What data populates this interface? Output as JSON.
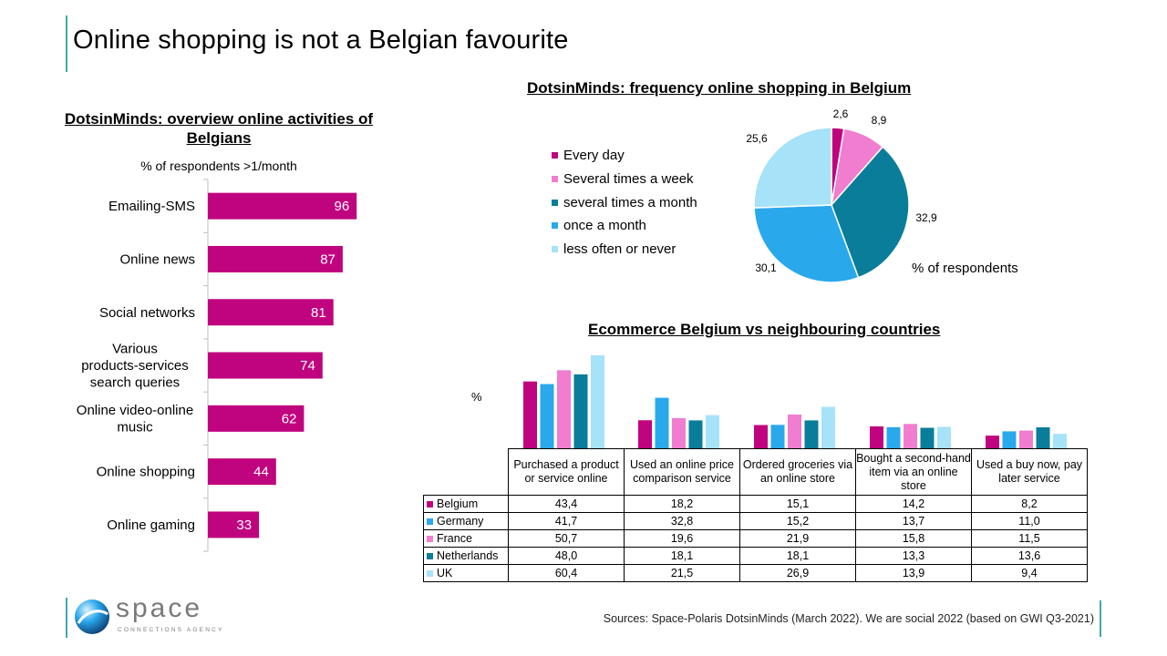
{
  "title": "Online shopping is not a Belgian favourite",
  "colors": {
    "accent": "#3fa7b5",
    "magenta": "#c0037e",
    "blue": "#2aa8ec",
    "pink": "#f07dd0",
    "teal": "#0a7d9b",
    "lightblue": "#a6e2f8"
  },
  "chart_data": [
    {
      "type": "bar",
      "orientation": "horizontal",
      "title": "DotsinMinds: overview online activities of Belgians",
      "subtitle": "% of respondents >1/month",
      "categories": [
        "Emailing-SMS",
        "Online news",
        "Social networks",
        "Various products-services search queries",
        "Online video-online music",
        "Online shopping",
        "Online gaming"
      ],
      "values": [
        96,
        87,
        81,
        74,
        62,
        44,
        33
      ],
      "value_labels": [
        "96",
        "87",
        "81",
        "74",
        "62",
        "44",
        "33"
      ],
      "xlim": [
        0,
        100
      ],
      "color": "#c0037e"
    },
    {
      "type": "pie",
      "title": "DotsinMinds: frequency online shopping in Belgium",
      "unit_label": "% of respondents",
      "labels": [
        "Every day",
        "Several times a week",
        "several times a month",
        "once a month",
        "less often or never"
      ],
      "values": [
        2.6,
        8.9,
        32.9,
        30.1,
        25.6
      ],
      "value_labels": [
        "2,6",
        "8,9",
        "32,9",
        "30,1",
        "25,6"
      ],
      "colors": [
        "#c0037e",
        "#f07dd0",
        "#0a7d9b",
        "#2aa8ec",
        "#a6e2f8"
      ],
      "legend": "left"
    },
    {
      "type": "bar",
      "title": "Ecommerce Belgium vs neighbouring countries",
      "ylabel": "%",
      "categories": [
        "Purchased a product or service online",
        "Used an online price comparison service",
        "Ordered groceries via an online store",
        "Bought a second-hand item via an online store",
        "Used a buy now, pay later service"
      ],
      "series": [
        {
          "name": "Belgium",
          "color": "#c0037e",
          "values": [
            43.4,
            18.2,
            15.1,
            14.2,
            8.2
          ],
          "labels": [
            "43,4",
            "18,2",
            "15,1",
            "14,2",
            "8,2"
          ]
        },
        {
          "name": "Germany",
          "color": "#2aa8ec",
          "values": [
            41.7,
            32.8,
            15.2,
            13.7,
            11.0
          ],
          "labels": [
            "41,7",
            "32,8",
            "15,2",
            "13,7",
            "11,0"
          ]
        },
        {
          "name": "France",
          "color": "#f07dd0",
          "values": [
            50.7,
            19.6,
            21.9,
            15.8,
            11.5
          ],
          "labels": [
            "50,7",
            "19,6",
            "21,9",
            "15,8",
            "11,5"
          ]
        },
        {
          "name": "Netherlands",
          "color": "#0a7d9b",
          "values": [
            48.0,
            18.1,
            18.1,
            13.3,
            13.6
          ],
          "labels": [
            "48,0",
            "18,1",
            "18,1",
            "13,3",
            "13,6"
          ]
        },
        {
          "name": "UK",
          "color": "#a6e2f8",
          "values": [
            60.4,
            21.5,
            26.9,
            13.9,
            9.4
          ],
          "labels": [
            "60,4",
            "21,5",
            "26,9",
            "13,9",
            "9,4"
          ]
        }
      ],
      "data_table": true
    }
  ],
  "logo": {
    "name": "space",
    "tagline": "CONNECTIONS AGENCY"
  },
  "sources": "Sources: Space-Polaris DotsinMinds (March 2022). We are social 2022 (based on GWI Q3-2021)"
}
